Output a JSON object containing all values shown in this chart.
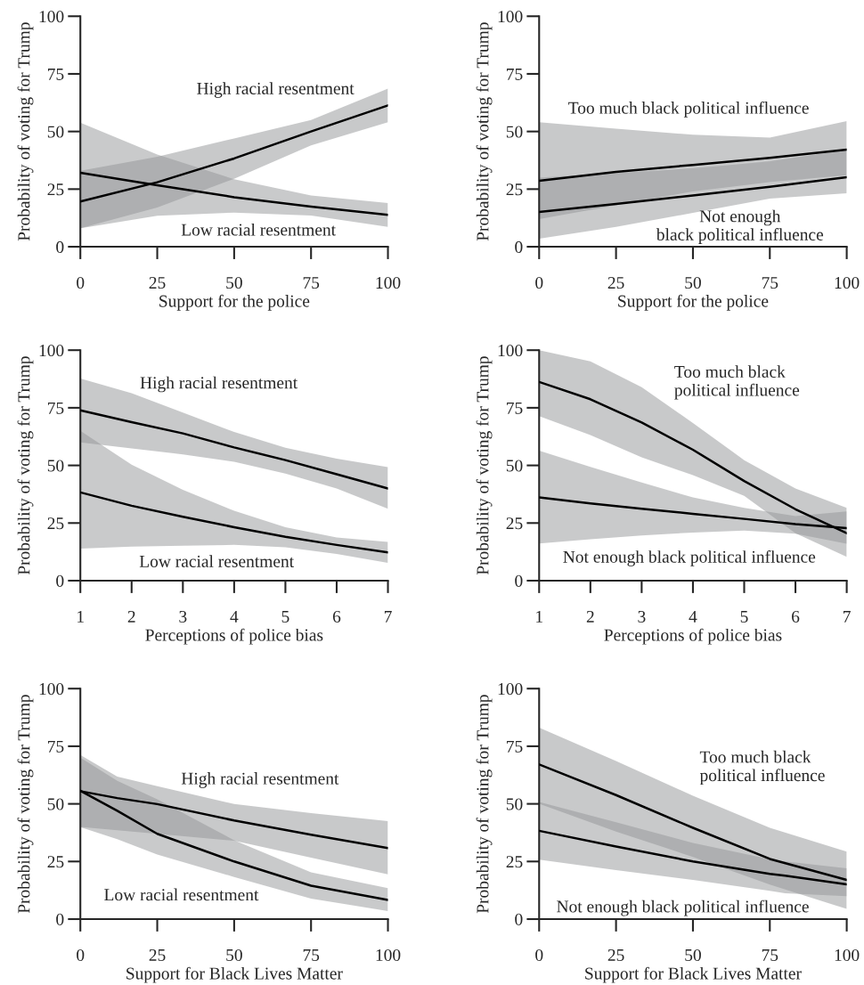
{
  "chart_data": [
    {
      "type": "line",
      "xlabel": "Support for the police",
      "ylabel": "Probability of voting for Trump",
      "xlim": [
        0,
        100
      ],
      "ylim": [
        0,
        100
      ],
      "xticks": [
        0,
        25,
        50,
        75,
        100
      ],
      "yticks": [
        0,
        25,
        50,
        75,
        100
      ],
      "series": [
        {
          "color": "#000000",
          "x": [
            0,
            25,
            50,
            75,
            100
          ],
          "values": [
            19.6,
            28,
            38.3,
            50,
            61.3
          ],
          "lower": [
            8,
            17,
            29.5,
            44,
            54
          ],
          "upper": [
            33,
            39,
            47,
            55,
            68.6
          ]
        },
        {
          "color": "#000000",
          "x": [
            0,
            25,
            50,
            75,
            100
          ],
          "values": [
            32.1,
            26.7,
            21.5,
            17.4,
            13.8
          ],
          "lower": [
            8,
            13.4,
            14.8,
            13.5,
            8.6
          ],
          "upper": [
            53.8,
            40,
            29.3,
            22.2,
            19
          ]
        }
      ],
      "annotations": [
        "High racial resentment",
        "Low racial resentment"
      ]
    },
    {
      "type": "line",
      "xlabel": "Support for the police",
      "ylabel": "Probability of voting for Trump",
      "xlim": [
        0,
        100
      ],
      "ylim": [
        0,
        100
      ],
      "xticks": [
        0,
        25,
        50,
        75,
        100
      ],
      "yticks": [
        0,
        25,
        50,
        75,
        100
      ],
      "series": [
        {
          "color": "#000000",
          "x": [
            0,
            25,
            50,
            75,
            100
          ],
          "values": [
            28.6,
            32.5,
            35.5,
            38.6,
            42.1
          ],
          "lower": [
            12,
            18,
            24,
            28,
            31
          ],
          "upper": [
            54,
            51.2,
            48.6,
            47.4,
            54.5
          ]
        },
        {
          "color": "#000000",
          "x": [
            0,
            25,
            50,
            75,
            100
          ],
          "values": [
            15.1,
            18.6,
            22.2,
            26,
            30.2
          ],
          "lower": [
            3.5,
            8.6,
            14.7,
            20.9,
            23.2
          ],
          "upper": [
            30,
            32,
            34,
            37,
            42
          ]
        }
      ],
      "annotations": [
        "Too much black political influence",
        "Not enough\nblack political influence"
      ]
    },
    {
      "type": "line",
      "xlabel": "Perceptions of police bias",
      "ylabel": "Probability of voting for Trump",
      "xlim": [
        1,
        7
      ],
      "ylim": [
        0,
        100
      ],
      "xticks": [
        1,
        2,
        3,
        4,
        5,
        6,
        7
      ],
      "yticks": [
        0,
        25,
        50,
        75,
        100
      ],
      "series": [
        {
          "color": "#000000",
          "x": [
            1,
            2,
            3,
            4,
            5,
            6,
            7
          ],
          "values": [
            73.9,
            68.8,
            63.9,
            57.8,
            52.3,
            46.2,
            40
          ],
          "lower": [
            60,
            57.4,
            54.8,
            51.6,
            46.5,
            40,
            31.2
          ],
          "upper": [
            87.7,
            81.3,
            72.9,
            64.5,
            57.7,
            52.9,
            49.3
          ]
        },
        {
          "color": "#000000",
          "x": [
            1,
            2,
            3,
            4,
            5,
            6,
            7
          ],
          "values": [
            38.3,
            32.5,
            27.7,
            23.2,
            19,
            15.5,
            12.3
          ],
          "lower": [
            13.9,
            14.8,
            15.2,
            15.5,
            14.5,
            11.6,
            7.7
          ],
          "upper": [
            65,
            50.3,
            39.4,
            30.3,
            23.2,
            18.7,
            16.8
          ]
        }
      ],
      "annotations": [
        "High racial resentment",
        "Low racial resentment"
      ]
    },
    {
      "type": "line",
      "xlabel": "Perceptions of police bias",
      "ylabel": "Probability of voting for Trump",
      "xlim": [
        1,
        7
      ],
      "ylim": [
        0,
        100
      ],
      "xticks": [
        1,
        2,
        3,
        4,
        5,
        6,
        7
      ],
      "yticks": [
        0,
        25,
        50,
        75,
        100
      ],
      "series": [
        {
          "color": "#000000",
          "x": [
            1,
            2,
            3,
            4,
            5,
            6,
            7
          ],
          "values": [
            86.2,
            78.7,
            68.6,
            56.8,
            43.2,
            31,
            20.6
          ],
          "lower": [
            71.4,
            63.2,
            53.5,
            45.8,
            36.8,
            20.6,
            10.3
          ],
          "upper": [
            100,
            95.1,
            83.9,
            68.4,
            52.3,
            40,
            31.6
          ]
        },
        {
          "color": "#000000",
          "x": [
            1,
            2,
            3,
            4,
            5,
            6,
            7
          ],
          "values": [
            36.1,
            33.5,
            31.2,
            29,
            26.8,
            24.5,
            22.8
          ],
          "lower": [
            16.1,
            18,
            19.6,
            20.9,
            21.7,
            20.4,
            16
          ],
          "upper": [
            56.4,
            49.4,
            42.6,
            36.1,
            31.6,
            28,
            30
          ]
        }
      ],
      "annotations": [
        "Too much black\npolitical influence",
        "Not enough black political influence"
      ]
    },
    {
      "type": "line",
      "xlabel": "Support for Black Lives Matter",
      "ylabel": "Probability of voting for Trump",
      "xlim": [
        0,
        100
      ],
      "ylim": [
        0,
        100
      ],
      "xticks": [
        0,
        25,
        50,
        75,
        100
      ],
      "yticks": [
        0,
        25,
        50,
        75,
        100
      ],
      "series": [
        {
          "color": "#000000",
          "x": [
            0,
            12,
            25,
            50,
            75,
            100
          ],
          "values": [
            55.5,
            52.5,
            49.9,
            42.8,
            36.6,
            30.8
          ],
          "lower": [
            40,
            38.5,
            37,
            34,
            26.7,
            19.4
          ],
          "upper": [
            71.2,
            61.8,
            57.7,
            49.9,
            46,
            42.5
          ]
        },
        {
          "color": "#000000",
          "x": [
            0,
            12,
            25,
            50,
            75,
            100
          ],
          "values": [
            55.7,
            47,
            37,
            25,
            14.5,
            8.3
          ],
          "lower": [
            39.9,
            34.7,
            28,
            18.3,
            8.9,
            3.5
          ],
          "upper": [
            70,
            60,
            52,
            34.2,
            20.3,
            13.4
          ]
        }
      ],
      "annotations": [
        "High racial resentment",
        "Low racial resentment"
      ]
    },
    {
      "type": "line",
      "xlabel": "Support for Black Lives Matter",
      "ylabel": "Probability of voting for Trump",
      "xlim": [
        0,
        100
      ],
      "ylim": [
        0,
        100
      ],
      "xticks": [
        0,
        25,
        50,
        75,
        100
      ],
      "yticks": [
        0,
        25,
        50,
        75,
        100
      ],
      "series": [
        {
          "color": "#000000",
          "x": [
            0,
            25,
            50,
            75,
            100
          ],
          "values": [
            67.1,
            53.8,
            39.6,
            26.1,
            17
          ],
          "lower": [
            50,
            38,
            27,
            15,
            4.4
          ],
          "upper": [
            83.1,
            68.6,
            53.5,
            39.6,
            29.3
          ]
        },
        {
          "color": "#000000",
          "x": [
            0,
            25,
            50,
            75,
            80,
            100
          ],
          "values": [
            38.3,
            31.5,
            25,
            19.6,
            18.8,
            15.1
          ],
          "lower": [
            25.8,
            21.3,
            17,
            12.3,
            11.2,
            10
          ],
          "upper": [
            50.8,
            42,
            33,
            26,
            25,
            22
          ]
        }
      ],
      "annotations": [
        "Too much black\npolitical influence",
        "Not enough black political influence"
      ]
    }
  ]
}
